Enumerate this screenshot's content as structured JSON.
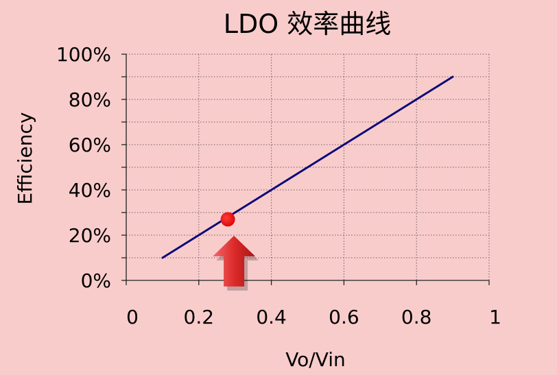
{
  "chart_data": {
    "type": "line",
    "title": "LDO 效率曲线",
    "xlabel": "Vo/Vin",
    "ylabel": "Efficiency",
    "xlim": [
      0,
      1
    ],
    "ylim": [
      0,
      1
    ],
    "x_ticks": [
      {
        "value": 0,
        "label": "0"
      },
      {
        "value": 0.2,
        "label": "0.2"
      },
      {
        "value": 0.4,
        "label": "0.4"
      },
      {
        "value": 0.6,
        "label": "0.6"
      },
      {
        "value": 0.8,
        "label": "0.8"
      },
      {
        "value": 1,
        "label": "1"
      }
    ],
    "y_ticks": [
      {
        "value": 0,
        "label": "0%"
      },
      {
        "value": 0.2,
        "label": "20%"
      },
      {
        "value": 0.4,
        "label": "40%"
      },
      {
        "value": 0.6,
        "label": "60%"
      },
      {
        "value": 0.8,
        "label": "80%"
      },
      {
        "value": 1,
        "label": "100%"
      }
    ],
    "series": [
      {
        "x": [
          0.1,
          0.2,
          0.3,
          0.4,
          0.5,
          0.6,
          0.7,
          0.8,
          0.9
        ],
        "y": [
          0.1,
          0.2,
          0.3,
          0.4,
          0.5,
          0.6,
          0.7,
          0.8,
          0.9
        ],
        "color": "#0a0a78"
      }
    ],
    "highlight_point": {
      "x": 0.28,
      "y": 0.27,
      "color": "#ee0000"
    },
    "arrow_color": "#dd2a2a",
    "grid": true,
    "grid_style": "dotted",
    "background": "#f9cccc"
  }
}
